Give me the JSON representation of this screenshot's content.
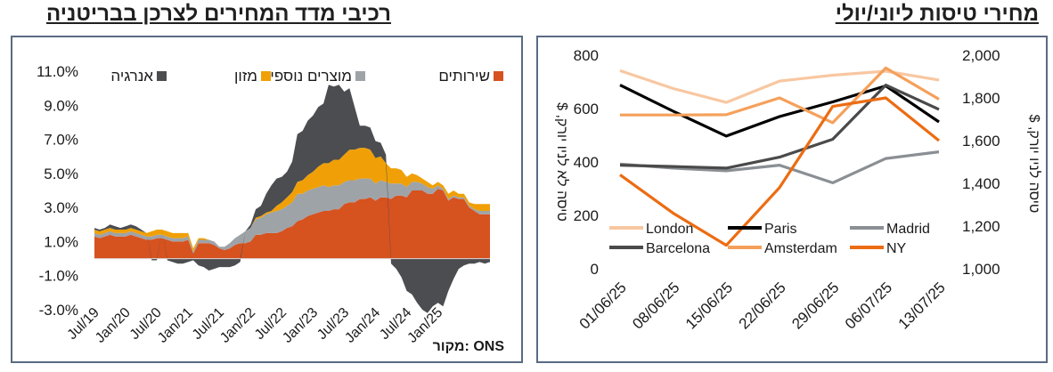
{
  "titles": {
    "left": "רכיבי מדד המחירים לצרכן בבריטניה",
    "right": "מחירי טיסות ליוני/יולי"
  },
  "colors": {
    "frame": "#596b82",
    "services": "#d6521f",
    "goods": "#9ea3a8",
    "food": "#f0a006",
    "energy": "#4b4d50",
    "london": "#f8c7a1",
    "paris": "#000000",
    "madrid": "#8a8f94",
    "barcelona": "#4a4a4a",
    "amsterdam": "#f5a05a",
    "ny": "#ec6c12"
  },
  "chart_data": [
    {
      "type": "area",
      "title": "רכיבי מדד המחירים לצרכן בבריטניה",
      "source": "מקור: ONS",
      "ylim": [
        -3.0,
        11.0
      ],
      "yticks": [
        "11.0%",
        "9.0%",
        "7.0%",
        "5.0%",
        "3.0%",
        "1.0%",
        "-1.0%",
        "-3.0%"
      ],
      "ytick_values": [
        11,
        9,
        7,
        5,
        3,
        1,
        -1,
        -3
      ],
      "xticks": [
        "Jul/19",
        "Jan/20",
        "Jul/20",
        "Jan/21",
        "Jul/21",
        "Jan/22",
        "Jul/22",
        "Jan/23",
        "Jul/23",
        "Jan/24",
        "Jul/24",
        "Jan/25"
      ],
      "xtick_index": [
        0,
        6,
        12,
        18,
        24,
        30,
        36,
        42,
        48,
        54,
        60,
        66
      ],
      "stacked": true,
      "months": [
        "2019-01",
        "2019-02",
        "2019-03",
        "2019-04",
        "2019-05",
        "2019-06",
        "2019-07",
        "2019-08",
        "2019-09",
        "2019-10",
        "2019-11",
        "2019-12",
        "2020-01",
        "2020-02",
        "2020-03",
        "2020-04",
        "2020-05",
        "2020-06",
        "2020-07",
        "2020-08",
        "2020-09",
        "2020-10",
        "2020-11",
        "2020-12",
        "2021-01",
        "2021-02",
        "2021-03",
        "2021-04",
        "2021-05",
        "2021-06",
        "2021-07",
        "2021-08",
        "2021-09",
        "2021-10",
        "2021-11",
        "2021-12",
        "2022-01",
        "2022-02",
        "2022-03",
        "2022-04",
        "2022-05",
        "2022-06",
        "2022-07",
        "2022-08",
        "2022-09",
        "2022-10",
        "2022-11",
        "2022-12",
        "2023-01",
        "2023-02",
        "2023-03",
        "2023-04",
        "2023-05",
        "2023-06",
        "2023-07",
        "2023-08",
        "2023-09",
        "2023-10",
        "2023-11",
        "2023-12",
        "2024-01",
        "2024-02",
        "2024-03",
        "2024-04",
        "2024-05",
        "2024-06",
        "2024-07",
        "2024-08",
        "2024-09",
        "2024-10",
        "2024-11",
        "2024-12",
        "2025-01",
        "2025-02",
        "2025-03",
        "2025-04",
        "2025-05"
      ],
      "series": [
        {
          "name": "שירותים",
          "color": "#d6521f",
          "values": [
            1.3,
            1.2,
            1.3,
            1.4,
            1.3,
            1.3,
            1.3,
            1.4,
            1.3,
            1.2,
            1.1,
            1.1,
            1.2,
            1.2,
            1.1,
            1.0,
            1.0,
            1.0,
            1.1,
            0.3,
            0.9,
            0.9,
            0.9,
            0.8,
            0.6,
            0.5,
            0.6,
            0.8,
            0.9,
            0.9,
            1.0,
            1.4,
            1.4,
            1.5,
            1.5,
            1.5,
            1.6,
            1.8,
            1.9,
            2.2,
            2.3,
            2.5,
            2.6,
            2.7,
            2.8,
            2.8,
            2.9,
            2.9,
            3.2,
            3.3,
            3.3,
            3.5,
            3.5,
            3.6,
            3.4,
            3.6,
            3.6,
            3.5,
            3.7,
            3.7,
            3.6,
            4.0,
            4.0,
            4.0,
            3.8,
            3.8,
            4.1,
            4.0,
            3.4,
            3.6,
            3.5,
            3.5,
            3.0,
            2.8,
            2.6,
            2.6,
            2.6
          ]
        },
        {
          "name": "מוצרים נוספים",
          "color": "#9ea3a8",
          "values": [
            0.2,
            0.2,
            0.2,
            0.2,
            0.2,
            0.2,
            0.2,
            0.2,
            0.2,
            0.2,
            0.2,
            0.2,
            0.2,
            0.2,
            0.2,
            0.2,
            0.2,
            0.2,
            0.2,
            0.1,
            0.2,
            0.2,
            0.2,
            0.2,
            0.1,
            0.2,
            0.3,
            0.4,
            0.5,
            0.7,
            0.8,
            0.9,
            1.0,
            1.1,
            1.2,
            1.3,
            1.3,
            1.3,
            1.4,
            1.6,
            1.5,
            1.5,
            1.5,
            1.5,
            1.5,
            1.4,
            1.4,
            1.4,
            1.3,
            1.3,
            1.3,
            1.2,
            1.2,
            1.1,
            1.0,
            1.0,
            0.9,
            0.9,
            0.7,
            0.7,
            0.6,
            0.5,
            0.5,
            0.4,
            0.4,
            0.3,
            0.2,
            0.1,
            0.1,
            0.1,
            0.1,
            0.1,
            0.1,
            0.1,
            0.2,
            0.2,
            0.2
          ]
        },
        {
          "name": "מזון",
          "color": "#f0a006",
          "values": [
            0.2,
            0.2,
            0.2,
            0.2,
            0.2,
            0.2,
            0.2,
            0.2,
            0.2,
            0.2,
            0.2,
            0.3,
            0.3,
            0.3,
            0.3,
            0.3,
            0.3,
            0.3,
            0.2,
            0.2,
            0.1,
            0.1,
            0.0,
            0.0,
            0.0,
            0.0,
            0.0,
            0.0,
            0.0,
            0.0,
            0.0,
            0.1,
            0.1,
            0.1,
            0.1,
            0.3,
            0.4,
            0.5,
            0.6,
            0.7,
            0.8,
            0.9,
            1.0,
            1.2,
            1.3,
            1.4,
            1.5,
            1.5,
            1.6,
            1.8,
            1.8,
            1.8,
            1.8,
            1.7,
            1.5,
            1.4,
            1.1,
            0.9,
            0.9,
            0.8,
            0.6,
            0.5,
            0.4,
            0.3,
            0.3,
            0.2,
            0.2,
            0.2,
            0.3,
            0.3,
            0.2,
            0.2,
            0.2,
            0.3,
            0.4,
            0.4,
            0.4
          ]
        },
        {
          "name": "אנרגיה",
          "color": "#4b4d50",
          "values": [
            0.1,
            0.1,
            0.1,
            0.2,
            0.2,
            0.1,
            0.2,
            0.2,
            0.2,
            0.1,
            0.0,
            -0.1,
            -0.1,
            0.0,
            -0.1,
            -0.2,
            -0.3,
            -0.3,
            -0.2,
            -0.1,
            -0.4,
            -0.5,
            -0.7,
            -0.6,
            -0.5,
            -0.5,
            -0.5,
            -0.4,
            -0.2,
            0.0,
            0.2,
            0.5,
            0.6,
            1.1,
            1.5,
            1.6,
            1.5,
            1.5,
            1.8,
            2.8,
            2.9,
            3.2,
            3.3,
            3.5,
            3.5,
            4.6,
            4.3,
            4.4,
            3.7,
            3.6,
            2.5,
            1.3,
            1.3,
            1.3,
            1.0,
            0.8,
            0.5,
            -0.3,
            -0.6,
            -1.1,
            -1.9,
            -2.1,
            -2.6,
            -3.0,
            -3.2,
            -2.8,
            -2.6,
            -2.8,
            -1.9,
            -1.2,
            -0.6,
            -0.4,
            -0.3,
            -0.3,
            -0.2,
            -0.3,
            -0.2
          ]
        }
      ]
    },
    {
      "type": "line",
      "title": "מחירי טיסות ליוני/יולי",
      "categories": [
        "01/06/25",
        "08/06/25",
        "15/06/25",
        "22/06/25",
        "29/06/25",
        "06/07/25",
        "13/07/25"
      ],
      "ylabel": "טיסה לא לניו יורק, $",
      "y2label": "טיסה לניו יורק, $",
      "ylim": [
        0,
        800
      ],
      "yticks": [
        "800",
        "600",
        "400",
        "200",
        "0"
      ],
      "ytick_values": [
        800,
        600,
        400,
        200,
        0
      ],
      "y2lim": [
        1000,
        2000
      ],
      "y2ticks": [
        "2,000",
        "1,800",
        "1,600",
        "1,400",
        "1,200",
        "1,000"
      ],
      "y2tick_values": [
        2000,
        1800,
        1600,
        1400,
        1200,
        1000
      ],
      "series": [
        {
          "name": "London",
          "color": "#f8c7a1",
          "axis": "y",
          "values": [
            742,
            675,
            623,
            703,
            725,
            740,
            707
          ]
        },
        {
          "name": "Paris",
          "color": "#000000",
          "axis": "y",
          "values": [
            688,
            590,
            497,
            570,
            625,
            685,
            550
          ]
        },
        {
          "name": "Madrid",
          "color": "#8a8f94",
          "axis": "y",
          "values": [
            392,
            377,
            367,
            388,
            322,
            413,
            438
          ]
        },
        {
          "name": "Barcelona",
          "color": "#4a4a4a",
          "axis": "y",
          "values": [
            388,
            383,
            377,
            418,
            485,
            688,
            597
          ]
        },
        {
          "name": "Amsterdam",
          "color": "#f5a05a",
          "axis": "y",
          "values": [
            576,
            576,
            577,
            640,
            547,
            752,
            635
          ]
        },
        {
          "name": "NY",
          "color": "#ec6c12",
          "axis": "y2",
          "values": [
            1440,
            1260,
            1110,
            1380,
            1760,
            1800,
            1600
          ]
        }
      ]
    }
  ]
}
